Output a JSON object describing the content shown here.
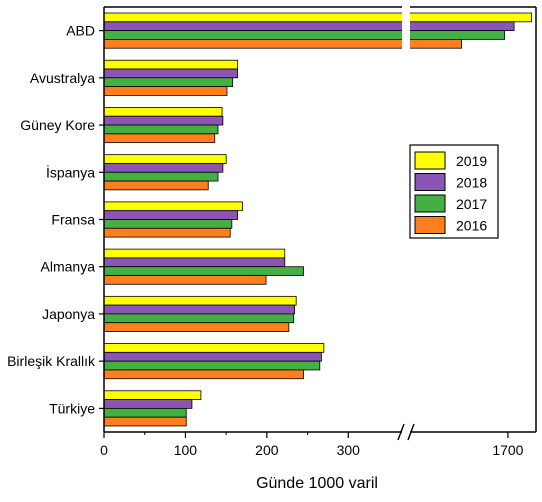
{
  "chart_data": {
    "type": "bar",
    "orientation": "horizontal",
    "title": "",
    "xlabel": "Günde 1000 varil",
    "ylabel": "",
    "categories": [
      "ABD",
      "Avustralya",
      "Güney Kore",
      "İspanya",
      "Fransa",
      "Almanya",
      "Japonya",
      "Birleşik Krallık",
      "Türkiye"
    ],
    "series": [
      {
        "name": "2019",
        "color": "#ffff00",
        "values": [
          1784,
          164,
          145,
          150,
          170,
          222,
          236,
          270,
          119
        ]
      },
      {
        "name": "2018",
        "color": "#8b55b5",
        "values": [
          1722,
          164,
          146,
          146,
          164,
          222,
          234,
          267,
          108
        ]
      },
      {
        "name": "2017",
        "color": "#44b044",
        "values": [
          1688,
          158,
          140,
          140,
          157,
          245,
          233,
          265,
          101
        ]
      },
      {
        "name": "2016",
        "color": "#ff7f1f",
        "values": [
          1535,
          151,
          136,
          128,
          155,
          199,
          227,
          245,
          101
        ]
      }
    ],
    "x_axis": {
      "break": true,
      "segment1": {
        "range": [
          0,
          350
        ],
        "ticks": [
          0,
          100,
          200,
          300
        ]
      },
      "segment2": {
        "range": [
          1380,
          1800
        ],
        "ticks": [
          1700
        ]
      },
      "tick_labels": [
        "0",
        "100",
        "200",
        "300",
        "1700"
      ]
    },
    "legend": {
      "placement": "right",
      "entries": [
        "2019",
        "2018",
        "2017",
        "2016"
      ]
    },
    "grid": false
  }
}
